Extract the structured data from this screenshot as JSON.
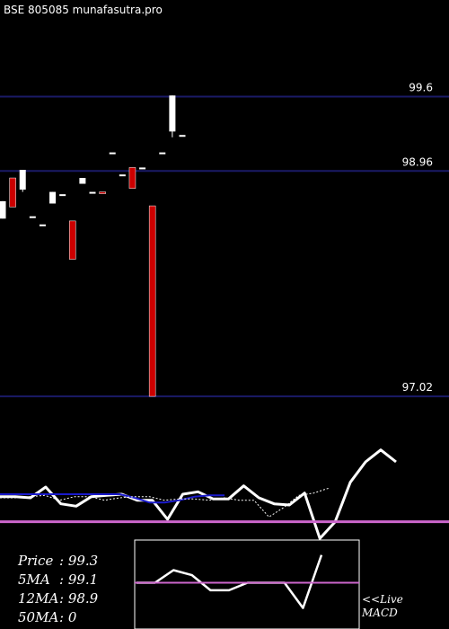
{
  "header": {
    "title": "BSE 805085 munafasutra.pro"
  },
  "colors": {
    "background": "#000000",
    "grid_line": "#1a1a66",
    "bull_candle": "#ffffff",
    "bear_candle": "#cc0000",
    "indicator_line": "#ffffff",
    "ma_line": "#1a1acc",
    "signal_line": "#cc66cc"
  },
  "chart_data": [
    {
      "type": "candlestick",
      "title": "BSE 805085 munafasutra.pro",
      "price_levels": [
        99.6,
        98.96,
        97.02
      ],
      "price_level_labels": [
        "99.6",
        "98.96",
        "97.02"
      ],
      "ylim": [
        96.1,
        100.2
      ],
      "candles": [
        {
          "open": 98.7,
          "high": 98.7,
          "low": 98.55,
          "close": 98.55,
          "dir": "bull"
        },
        {
          "open": 98.9,
          "high": 98.9,
          "low": 98.65,
          "close": 98.65,
          "dir": "bear"
        },
        {
          "open": 98.8,
          "high": 98.97,
          "low": 98.78,
          "close": 98.97,
          "dir": "bull"
        },
        {
          "open": 98.57,
          "high": 98.57,
          "low": 98.57,
          "close": 98.57,
          "dir": "bull"
        },
        {
          "open": 98.5,
          "high": 98.5,
          "low": 98.5,
          "close": 98.5,
          "dir": "bull"
        },
        {
          "open": 98.68,
          "high": 98.78,
          "low": 98.68,
          "close": 98.78,
          "dir": "bull"
        },
        {
          "open": 98.76,
          "high": 98.76,
          "low": 98.76,
          "close": 98.76,
          "dir": "bull"
        },
        {
          "open": 98.53,
          "high": 98.53,
          "low": 98.2,
          "close": 98.2,
          "dir": "bear"
        },
        {
          "open": 98.85,
          "high": 98.9,
          "low": 98.85,
          "close": 98.9,
          "dir": "bull"
        },
        {
          "open": 98.78,
          "high": 98.78,
          "low": 98.78,
          "close": 98.78,
          "dir": "bull"
        },
        {
          "open": 98.78,
          "high": 98.78,
          "low": 98.77,
          "close": 98.77,
          "dir": "bear"
        },
        {
          "open": 99.12,
          "high": 99.12,
          "low": 99.12,
          "close": 99.12,
          "dir": "bull"
        },
        {
          "open": 98.93,
          "high": 98.93,
          "low": 98.93,
          "close": 98.93,
          "dir": "bull"
        },
        {
          "open": 98.99,
          "high": 98.99,
          "low": 98.81,
          "close": 98.81,
          "dir": "bear"
        },
        {
          "open": 98.99,
          "high": 98.99,
          "low": 98.99,
          "close": 98.99,
          "dir": "bull"
        },
        {
          "open": 98.66,
          "high": 98.66,
          "low": 97.02,
          "close": 97.02,
          "dir": "bear"
        },
        {
          "open": 99.12,
          "high": 99.12,
          "low": 99.12,
          "close": 99.12,
          "dir": "bull"
        },
        {
          "open": 99.3,
          "high": 99.61,
          "low": 99.25,
          "close": 99.61,
          "dir": "bull"
        },
        {
          "open": 99.27,
          "high": 99.27,
          "low": 99.27,
          "close": 99.27,
          "dir": "bull"
        }
      ]
    },
    {
      "type": "line",
      "series": [
        {
          "role": "main",
          "values": [
            3,
            3,
            2,
            11,
            -3,
            -5,
            3,
            4,
            5,
            0,
            0,
            -16,
            5,
            7,
            1,
            1,
            12,
            2,
            -3,
            -4,
            6,
            -32,
            -18,
            15,
            32,
            42,
            32
          ]
        },
        {
          "role": "moving-average",
          "values": [
            5,
            5,
            5,
            5,
            5,
            5,
            5,
            5,
            5,
            2,
            -2,
            -2,
            0,
            3,
            4,
            4
          ]
        },
        {
          "role": "dotted",
          "values": [
            2,
            2,
            3,
            4,
            0,
            3,
            3,
            0,
            2,
            3,
            3,
            0,
            1,
            1,
            0,
            2,
            0,
            0,
            -14,
            -6,
            4,
            6,
            10
          ]
        },
        {
          "role": "zero-line",
          "values": [
            -18
          ]
        }
      ]
    },
    {
      "type": "line",
      "label": "MACD",
      "series": [
        {
          "role": "macd",
          "values": [
            0,
            0,
            0.5,
            0.3,
            -0.3,
            -0.3,
            0,
            0,
            0,
            -1,
            1.1
          ]
        },
        {
          "role": "signal",
          "values": [
            0,
            0
          ]
        }
      ]
    }
  ],
  "stats": [
    {
      "label": "Price",
      "value": ": 99.3"
    },
    {
      "label": "5MA",
      "value": ": 99.1"
    },
    {
      "label": "12MA",
      "value": ": 98.9"
    },
    {
      "label": "50MA",
      "value": ": 0"
    }
  ],
  "live": {
    "arrow": "<<Live",
    "name": "MACD"
  }
}
